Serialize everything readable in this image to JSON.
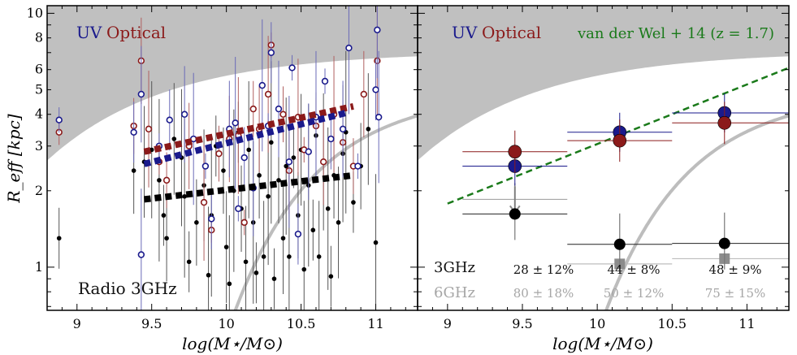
{
  "chart_data": [
    {
      "type": "scatter",
      "panel": "left",
      "xlabel": "log(M⋆/M⊙)",
      "ylabel": "R_eff [kpc]",
      "x_ticks": [
        "9",
        "9.5",
        "10",
        "10.5",
        "11"
      ],
      "y_ticks": [
        "1",
        "2",
        "3",
        "4",
        "5",
        "6",
        "8",
        "10"
      ],
      "xlim": [
        8.8,
        11.28
      ],
      "ylim_log10": [
        -0.17,
        1.03
      ],
      "legend": {
        "uv": "UV",
        "optical": "Optical"
      },
      "annotation": "Radio 3GHz",
      "colors": {
        "uv": "#1a1a8c",
        "optical": "#8b1a1a",
        "radio": "#000000",
        "shade": "#c0c0c0",
        "curve": "#bdbdbd"
      },
      "series": [
        {
          "name": "UV",
          "x": [
            8.88,
            9.38,
            9.43,
            9.43,
            9.55,
            9.62,
            9.72,
            9.78,
            9.86,
            9.9,
            10.02,
            10.06,
            10.08,
            10.12,
            10.18,
            10.24,
            10.28,
            10.3,
            10.35,
            10.42,
            10.44,
            10.48,
            10.55,
            10.6,
            10.66,
            10.7,
            10.78,
            10.82,
            10.88,
            11.0,
            11.01,
            11.02
          ],
          "y": [
            3.8,
            3.4,
            4.8,
            1.12,
            3.0,
            3.8,
            4.0,
            3.2,
            2.5,
            1.55,
            3.5,
            3.7,
            1.7,
            2.7,
            2.05,
            5.2,
            3.6,
            7.0,
            4.2,
            2.6,
            6.1,
            1.35,
            2.85,
            3.9,
            5.4,
            3.2,
            3.5,
            7.3,
            2.5,
            5.0,
            8.6,
            3.9
          ]
        },
        {
          "name": "Optical",
          "x": [
            8.88,
            9.38,
            9.43,
            9.48,
            9.55,
            9.6,
            9.75,
            9.85,
            9.9,
            9.95,
            10.02,
            10.08,
            10.12,
            10.18,
            10.22,
            10.28,
            10.3,
            10.38,
            10.42,
            10.48,
            10.52,
            10.6,
            10.65,
            10.72,
            10.78,
            10.85,
            10.92,
            11.01
          ],
          "y": [
            3.4,
            3.6,
            6.5,
            3.5,
            2.6,
            2.2,
            3.0,
            1.8,
            1.4,
            2.8,
            3.2,
            3.3,
            1.5,
            4.2,
            3.5,
            4.8,
            7.5,
            4.0,
            2.4,
            3.9,
            2.9,
            3.6,
            2.6,
            4.0,
            3.1,
            2.5,
            4.8,
            6.5
          ],
          "y_outer": [
            3.4
          ]
        },
        {
          "name": "Radio 3GHz",
          "x": [
            8.88,
            9.38,
            9.45,
            9.5,
            9.55,
            9.58,
            9.6,
            9.65,
            9.7,
            9.72,
            9.75,
            9.8,
            9.85,
            9.88,
            9.9,
            9.93,
            9.98,
            10.0,
            10.02,
            10.05,
            10.08,
            10.1,
            10.13,
            10.15,
            10.18,
            10.2,
            10.22,
            10.25,
            10.28,
            10.3,
            10.32,
            10.35,
            10.38,
            10.4,
            10.42,
            10.45,
            10.48,
            10.5,
            10.52,
            10.55,
            10.58,
            10.6,
            10.62,
            10.65,
            10.68,
            10.7,
            10.72,
            10.75,
            10.78,
            10.8,
            10.85,
            10.9,
            10.95,
            11.0
          ],
          "y": [
            1.3,
            2.4,
            2.6,
            2.9,
            2.2,
            1.6,
            1.3,
            3.2,
            2.7,
            1.9,
            1.05,
            1.5,
            2.1,
            0.93,
            1.6,
            3.0,
            2.4,
            1.2,
            0.86,
            2.0,
            3.4,
            1.7,
            1.05,
            2.9,
            1.5,
            0.95,
            2.3,
            1.1,
            1.9,
            3.1,
            0.9,
            2.2,
            1.3,
            2.5,
            1.1,
            2.7,
            1.6,
            2.9,
            0.98,
            2.1,
            1.4,
            3.3,
            1.1,
            2.6,
            1.7,
            0.92,
            2.3,
            1.5,
            2.8,
            3.4,
            1.8,
            2.5,
            3.5,
            1.25
          ]
        }
      ],
      "fit_lines": [
        {
          "name": "Optical fit",
          "x": [
            9.45,
            10.85
          ],
          "y": [
            2.85,
            4.3
          ]
        },
        {
          "name": "UV fit",
          "x": [
            9.45,
            10.8
          ],
          "y": [
            2.55,
            4.05
          ]
        },
        {
          "name": "Radio fit",
          "x": [
            9.45,
            10.85
          ],
          "y": [
            1.85,
            2.3
          ]
        }
      ]
    },
    {
      "type": "scatter",
      "panel": "right",
      "xlabel": "log(M⋆/M⊙)",
      "x_ticks": [
        "9",
        "9.5",
        "10",
        "10.5",
        "11"
      ],
      "xlim": [
        8.8,
        11.28
      ],
      "ylim_log10": [
        -0.17,
        1.03
      ],
      "legend": {
        "uv": "UV",
        "optical": "Optical",
        "relation": "van der Wel + 14 (z = 1.7)"
      },
      "colors": {
        "uv": "#1a1a8c",
        "optical": "#8b1a1a",
        "radio3": "#000000",
        "radio6": "#8c8c8c",
        "relation": "#1a7a1a"
      },
      "bins": [
        {
          "x": 9.45,
          "x_lo": 9.1,
          "x_hi": 9.8,
          "uv": 2.5,
          "optical": 2.85,
          "radio3": 1.62,
          "radio6_upper": 1.85,
          "frac_3ghz": "28 ± 12%",
          "frac_6ghz": "80 ± 18%"
        },
        {
          "x": 10.15,
          "x_lo": 9.8,
          "x_hi": 10.5,
          "uv": 3.4,
          "optical": 3.15,
          "radio3": 1.23,
          "radio6": 1.03,
          "frac_3ghz": "44 ± 8%",
          "frac_6ghz": "50 ± 12%"
        },
        {
          "x": 10.85,
          "x_lo": 10.5,
          "x_hi": 11.28,
          "uv": 4.05,
          "optical": 3.7,
          "radio3": 1.24,
          "radio6": 1.08,
          "frac_3ghz": "48 ± 9%",
          "frac_6ghz": "75 ± 15%"
        }
      ],
      "row_labels": {
        "ghz3": "3GHz",
        "ghz6": "6GHz"
      },
      "relation": {
        "name": "van der Wel + 14 (z = 1.7)",
        "x": [
          9.0,
          11.28
        ],
        "y": [
          1.78,
          6.1
        ]
      }
    }
  ]
}
